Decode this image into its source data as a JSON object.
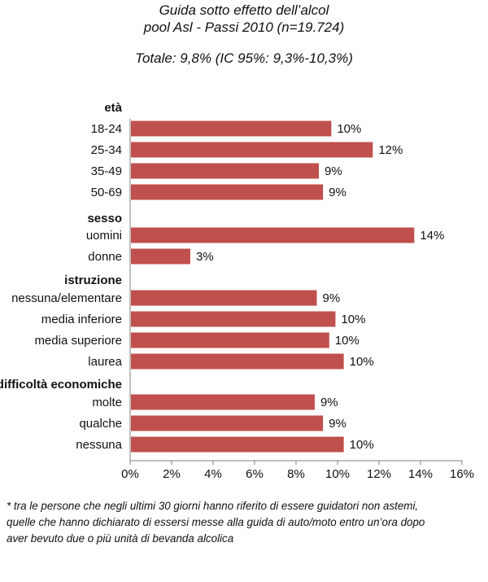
{
  "header": {
    "title_line1": "Guida sotto effetto dell’alcol",
    "title_line2": "pool Asl - Passi 2010 (n=19.724)",
    "total": "Totale: 9,8% (IC 95%: 9,3%-10,3%)"
  },
  "colors": {
    "bar": "#c0504d",
    "axis": "#7f7f7f"
  },
  "chart_data": {
    "type": "bar",
    "orientation": "horizontal",
    "title": "Guida sotto effetto dell’alcol",
    "xlim": [
      0,
      16
    ],
    "xticks": [
      "0%",
      "2%",
      "4%",
      "6%",
      "8%",
      "10%",
      "12%",
      "14%",
      "16%"
    ],
    "grid": false,
    "groups": [
      {
        "name": "età",
        "items": [
          {
            "label": "18-24",
            "value": 9.7,
            "data_label": "10%"
          },
          {
            "label": "25-34",
            "value": 11.7,
            "data_label": "12%"
          },
          {
            "label": "35-49",
            "value": 9.1,
            "data_label": "9%"
          },
          {
            "label": "50-69",
            "value": 9.3,
            "data_label": "9%"
          }
        ]
      },
      {
        "name": "sesso",
        "items": [
          {
            "label": "uomini",
            "value": 13.7,
            "data_label": "14%"
          },
          {
            "label": "donne",
            "value": 2.9,
            "data_label": "3%"
          }
        ]
      },
      {
        "name": "istruzione",
        "items": [
          {
            "label": "nessuna/elementare",
            "value": 9.0,
            "data_label": "9%"
          },
          {
            "label": "media inferiore",
            "value": 9.9,
            "data_label": "10%"
          },
          {
            "label": "media superiore",
            "value": 9.6,
            "data_label": "10%"
          },
          {
            "label": "laurea",
            "value": 10.3,
            "data_label": "10%"
          }
        ]
      },
      {
        "name": "difficoltà economiche",
        "items": [
          {
            "label": "molte",
            "value": 8.9,
            "data_label": "9%"
          },
          {
            "label": "qualche",
            "value": 9.3,
            "data_label": "9%"
          },
          {
            "label": "nessuna",
            "value": 10.3,
            "data_label": "10%"
          }
        ]
      }
    ]
  },
  "footnote": {
    "line1": "* tra le persone che negli ultimi 30 giorni hanno riferito di essere guidatori non astemi,",
    "line2": "quelle che hanno dichiarato di essersi messe alla guida di auto/moto entro un’ora dopo",
    "line3": "aver bevuto due o più unità di bevanda alcolica"
  }
}
